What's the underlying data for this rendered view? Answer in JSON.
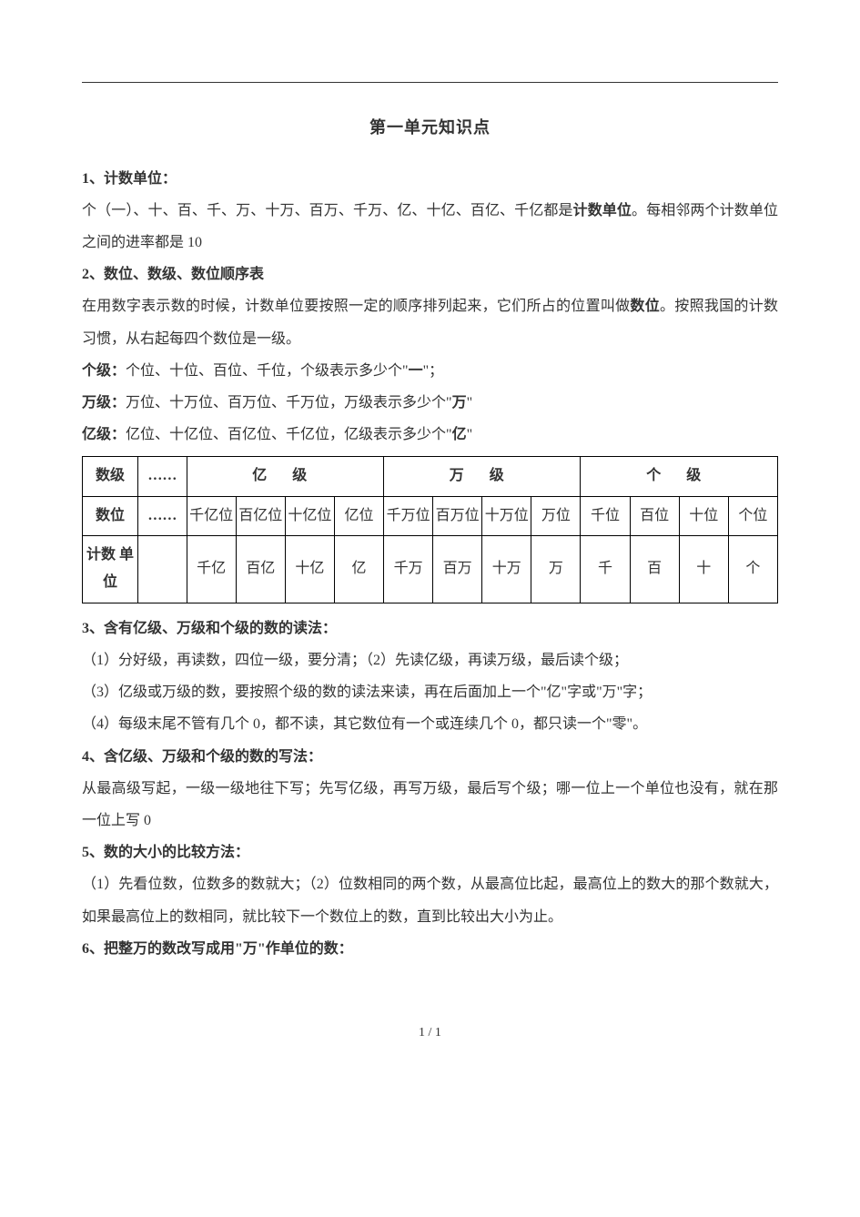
{
  "title": "第一单元知识点",
  "section1": {
    "heading": "1、计数单位：",
    "line1a": "个（一）、十、百、千、万、十万、百万、千万、亿、十亿、百亿、千亿都是",
    "line1b": "计数单位",
    "line1c": "。每相邻两个计数单位之间的进率都是 10"
  },
  "section2": {
    "heading": "2、数位、数级、数位顺序表",
    "line1a": "在用数字表示数的时候，计数单位要按照一定的顺序排列起来，它们所占的位置叫做",
    "line1b": "数位",
    "line1c": "。按照我国的计数习惯，从右起每四个数位是一级。",
    "ge_label": "个级：",
    "ge_text_a": "个位、十位、百位、千位，个级表示多少个\"",
    "ge_text_b": "一",
    "ge_text_c": "\"；",
    "wan_label": "万级：",
    "wan_text_a": "万位、十万位、百万位、千万位，万级表示多少个\"",
    "wan_text_b": "万",
    "wan_text_c": "\"",
    "yi_label": "亿级：",
    "yi_text_a": "亿位、十亿位、百亿位、千亿位，亿级表示多少个\"",
    "yi_text_b": "亿",
    "yi_text_c": "\""
  },
  "table": {
    "row_labels": {
      "suji": "数级",
      "shuwei": "数位",
      "jishu": "计数\n单位"
    },
    "ellipsis": "……",
    "group_headers": {
      "yi": "亿 级",
      "wan": "万 级",
      "ge": "个 级"
    },
    "shuwei_cells": [
      "千亿位",
      "百亿位",
      "十亿位",
      "亿位",
      "千万位",
      "百万位",
      "十万位",
      "万位",
      "千位",
      "百位",
      "十位",
      "个位"
    ],
    "jishu_cells": [
      "千亿",
      "百亿",
      "十亿",
      "亿",
      "千万",
      "百万",
      "十万",
      "万",
      "千",
      "百",
      "十",
      "个"
    ]
  },
  "section3": {
    "heading": "3、含有亿级、万级和个级的数的读法：",
    "line1": "（1）分好级，再读数，四位一级，要分清；（2）先读亿级，再读万级，最后读个级；",
    "line2": "（3）亿级或万级的数，要按照个级的数的读法来读，再在后面加上一个\"亿\"字或\"万\"字；",
    "line3": "（4）每级末尾不管有几个 0，都不读，其它数位有一个或连续几个 0，都只读一个\"零\"。"
  },
  "section4": {
    "heading": "4、含亿级、万级和个级的数的写法：",
    "line1": "从最高级写起，一级一级地往下写；先写亿级，再写万级，最后写个级；哪一位上一个单位也没有，就在那一位上写 0"
  },
  "section5": {
    "heading": "5、数的大小的比较方法：",
    "line1": "（1）先看位数，位数多的数就大；（2）位数相同的两个数，从最高位比起，最高位上的数大的那个数就大，如果最高位上的数相同，就比较下一个数位上的数，直到比较出大小为止。"
  },
  "section6": {
    "heading": "6、把整万的数改写成用\"万\"作单位的数："
  },
  "footer": "1 / 1"
}
